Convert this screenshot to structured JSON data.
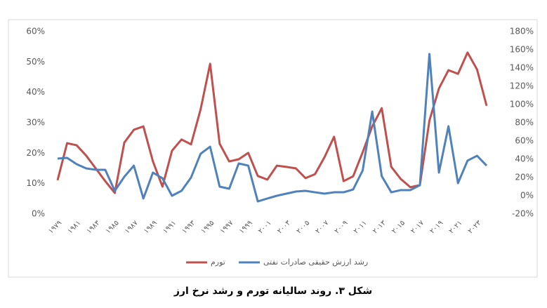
{
  "chart_data": {
    "type": "line",
    "caption": "شکل ۳. روند سالیانه تورم و رشد نرخ ارز",
    "categories": [
      "۱۹۷۹",
      null,
      "۱۹۸۱",
      null,
      "۱۹۸۳",
      null,
      "۱۹۸۵",
      null,
      "۱۹۸۷",
      null,
      "۱۹۸۹",
      null,
      "۱۹۹۱",
      null,
      "۱۹۹۳",
      null,
      "۱۹۹۵",
      null,
      "۱۹۹۷",
      null,
      "۱۹۹۹",
      null,
      "۲۰۰۱",
      null,
      "۲۰۰۳",
      null,
      "۲۰۰۵",
      null,
      "۲۰۰۷",
      null,
      "۲۰۰۹",
      null,
      "۲۰۱۱",
      null,
      "۲۰۱۳",
      null,
      "۲۰۱۵",
      null,
      "۲۰۱۷",
      null,
      "۲۰۱۹",
      null,
      "۲۰۲۱",
      null,
      "۲۰۲۳",
      null
    ],
    "series": [
      {
        "name": "تورم",
        "color": "#c0504d",
        "values": [
          11.1,
          23.3,
          22.6,
          19.2,
          15,
          10.8,
          6.9,
          23.5,
          27.7,
          28.8,
          17.3,
          9,
          20.8,
          24.5,
          22.9,
          34.4,
          49.4,
          23.1,
          17.3,
          18,
          20.1,
          12.5,
          11.3,
          15.9,
          15.5,
          15,
          11.8,
          13.1,
          18.7,
          25.4,
          10.8,
          12.4,
          20.3,
          28.8,
          34.8,
          15.5,
          11.5,
          8.8,
          9.5,
          30.7,
          41.3,
          47.3,
          46.1,
          53.1,
          47.5,
          35.6
        ]
      },
      {
        "name": "رشد ارزش حقیقی صادرات نفتی",
        "color": "#4f81bd",
        "axis": "y2",
        "values": [
          40.8,
          41.5,
          34.6,
          30,
          28.5,
          28.5,
          5.4,
          20.8,
          33,
          -3,
          25.4,
          19.2,
          0,
          5.4,
          20,
          46,
          53.8,
          10,
          7.7,
          35.4,
          33,
          -6.2,
          -3,
          0,
          2.3,
          4.6,
          5.4,
          3.8,
          2.3,
          3.8,
          3.8,
          6.9,
          27.7,
          92.3,
          21.5,
          3.8,
          6.2,
          6.2,
          11.5,
          155.4,
          25.4,
          76.2,
          13.8,
          38.5,
          43.8,
          33
        ]
      }
    ],
    "ylim": [
      0,
      60
    ],
    "yticks": [
      {
        "value": 0,
        "label": "0%"
      },
      {
        "value": 10,
        "label": "10%"
      },
      {
        "value": 20,
        "label": "20%"
      },
      {
        "value": 30,
        "label": "30%"
      },
      {
        "value": 40,
        "label": "40%"
      },
      {
        "value": 50,
        "label": "50%"
      },
      {
        "value": 60,
        "label": "60%"
      }
    ],
    "y2lim": [
      -20,
      180
    ],
    "y2ticks": [
      {
        "value": -20,
        "label": "-20%"
      },
      {
        "value": 0,
        "label": "0%"
      },
      {
        "value": 20,
        "label": "20%"
      },
      {
        "value": 40,
        "label": "40%"
      },
      {
        "value": 60,
        "label": "60%"
      },
      {
        "value": 80,
        "label": "80%"
      },
      {
        "value": 100,
        "label": "100%"
      },
      {
        "value": 120,
        "label": "120%"
      },
      {
        "value": 140,
        "label": "140%"
      },
      {
        "value": 160,
        "label": "160%"
      },
      {
        "value": 180,
        "label": "180%"
      }
    ],
    "grid": false,
    "legend": "bottom"
  }
}
